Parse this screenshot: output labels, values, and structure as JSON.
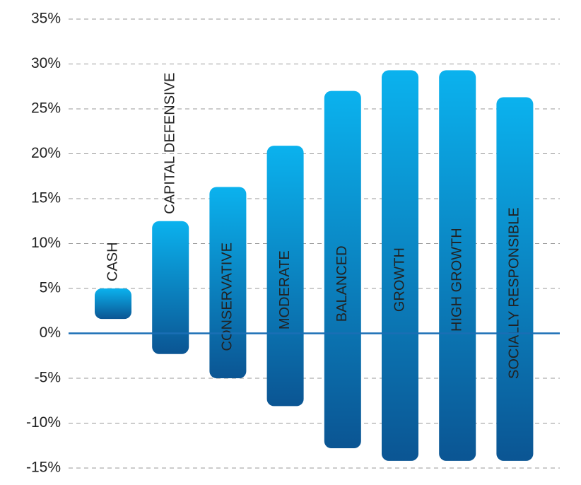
{
  "chart_data": {
    "type": "range",
    "categories": [
      "CASH",
      "CAPITAL DEFENSIVE",
      "CONSERVATIVE",
      "MODERATE",
      "BALANCED",
      "GROWTH",
      "HIGH GROWTH",
      "SOCIALLY RESPONSIBLE"
    ],
    "low": [
      1.6,
      -2.3,
      -5,
      -8.1,
      -12.8,
      -14.2,
      -14.2,
      -14.2
    ],
    "high": [
      5,
      12.5,
      16.3,
      20.9,
      27,
      29.3,
      29.3,
      26.3
    ],
    "colors": [
      "#0bb2ee",
      "#0b5593"
    ],
    "zero_line_color": "#1a6fb5",
    "ylim": [
      -15,
      35
    ],
    "yticks": [
      {
        "value": -15,
        "label": "-15%"
      },
      {
        "value": -10,
        "label": "-10%"
      },
      {
        "value": -5,
        "label": "-5%"
      },
      {
        "value": 0,
        "label": "0%"
      },
      {
        "value": 5,
        "label": "5%"
      },
      {
        "value": 10,
        "label": "10%"
      },
      {
        "value": 15,
        "label": "15%"
      },
      {
        "value": 20,
        "label": "20%"
      },
      {
        "value": 25,
        "label": "25%"
      },
      {
        "value": 30,
        "label": "30%"
      },
      {
        "value": 35,
        "label": "35%"
      }
    ],
    "grid": true
  }
}
